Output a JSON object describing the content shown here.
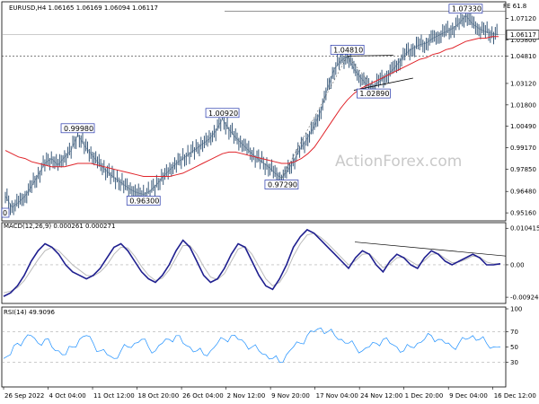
{
  "chart_data": {
    "type": "line",
    "instrument": "EURUSD,H4",
    "ohlc": [
      "1.06165",
      "1.06169",
      "1.06094",
      "1.06117"
    ],
    "watermark": "ActionForex.com",
    "fib_label": "FE 61.8",
    "x_ticks": [
      "26 Sep 2022",
      "4 Oct 04:00",
      "11 Oct 12:00",
      "18 Oct 20:00",
      "26 Oct 04:00",
      "2 Nov 12:00",
      "9 Nov 20:00",
      "17 Nov 04:00",
      "24 Nov 12:00",
      "1 Dec 20:00",
      "9 Dec 04:00",
      "16 Dec 12:00"
    ],
    "price_panel": {
      "y_ticks": [
        "1.07120",
        "1.05800",
        "1.04810",
        "1.03120",
        "1.01800",
        "1.00490",
        "0.99170",
        "0.97850",
        "0.96480",
        "0.95160"
      ],
      "ylim": [
        0.95,
        1.077
      ],
      "current_price": "1.06117",
      "price_series": [
        0.962,
        0.955,
        0.958,
        0.962,
        0.968,
        0.975,
        0.982,
        0.985,
        0.981,
        0.986,
        0.99,
        0.9998,
        0.993,
        0.988,
        0.983,
        0.979,
        0.975,
        0.972,
        0.969,
        0.966,
        0.964,
        0.963,
        0.965,
        0.969,
        0.974,
        0.978,
        0.982,
        0.985,
        0.988,
        0.991,
        0.994,
        0.997,
        1.002,
        1.0092,
        1.003,
        0.998,
        0.994,
        0.99,
        0.986,
        0.983,
        0.98,
        0.976,
        0.9729,
        0.978,
        0.985,
        0.992,
        0.998,
        1.005,
        1.015,
        1.028,
        1.04,
        1.045,
        1.0481,
        1.04,
        1.035,
        1.03,
        1.0289,
        1.033,
        1.036,
        1.04,
        1.045,
        1.05,
        1.053,
        1.055,
        1.056,
        1.059,
        1.061,
        1.063,
        1.065,
        1.068,
        1.073,
        1.068,
        1.065,
        1.063,
        1.062,
        1.0612
      ],
      "ma_series": [
        0.99,
        0.988,
        0.986,
        0.985,
        0.983,
        0.982,
        0.981,
        0.98,
        0.98,
        0.98,
        0.981,
        0.982,
        0.982,
        0.982,
        0.981,
        0.98,
        0.979,
        0.978,
        0.977,
        0.976,
        0.975,
        0.974,
        0.974,
        0.974,
        0.974,
        0.974,
        0.975,
        0.976,
        0.978,
        0.98,
        0.982,
        0.984,
        0.986,
        0.988,
        0.989,
        0.989,
        0.988,
        0.987,
        0.986,
        0.985,
        0.984,
        0.983,
        0.982,
        0.982,
        0.983,
        0.985,
        0.988,
        0.992,
        0.998,
        1.004,
        1.01,
        1.016,
        1.021,
        1.025,
        1.028,
        1.03,
        1.032,
        1.034,
        1.036,
        1.038,
        1.04,
        1.042,
        1.044,
        1.046,
        1.047,
        1.049,
        1.05,
        1.052,
        1.053,
        1.055,
        1.057,
        1.058,
        1.059,
        1.059,
        1.06,
        1.06
      ],
      "level_labels": [
        {
          "text": "0.99980",
          "i": 11,
          "v": 0.9998
        },
        {
          "text": "0.96300",
          "i": 21,
          "v": 0.963
        },
        {
          "text": "1.00920",
          "i": 33,
          "v": 1.0092
        },
        {
          "text": "0.97290",
          "i": 42,
          "v": 0.9729
        },
        {
          "text": "1.04810",
          "i": 52,
          "v": 1.0481
        },
        {
          "text": "1.02890",
          "i": 56,
          "v": 1.0289
        },
        {
          "text": "1.07330",
          "i": 70,
          "v": 1.0733
        }
      ],
      "corner_label": "0"
    },
    "macd_panel": {
      "title": "MACD(12,26,9) 0.000261 0.000271",
      "y_ticks": [
        "0.010415",
        "0.00",
        "-0.009244"
      ],
      "ylim": [
        -0.0105,
        0.0115
      ],
      "macd": [
        -0.009,
        -0.008,
        -0.006,
        -0.003,
        0.001,
        0.004,
        0.006,
        0.005,
        0.003,
        0.0,
        -0.002,
        -0.003,
        -0.004,
        -0.003,
        -0.001,
        0.002,
        0.005,
        0.006,
        0.004,
        0.001,
        -0.002,
        -0.004,
        -0.005,
        -0.003,
        0.0,
        0.004,
        0.007,
        0.005,
        0.001,
        -0.003,
        -0.005,
        -0.004,
        -0.001,
        0.003,
        0.006,
        0.005,
        0.001,
        -0.003,
        -0.006,
        -0.007,
        -0.004,
        0.0,
        0.005,
        0.008,
        0.01,
        0.009,
        0.007,
        0.005,
        0.003,
        0.001,
        -0.001,
        0.002,
        0.004,
        0.003,
        0.0,
        -0.002,
        0.001,
        0.003,
        0.002,
        0.0,
        -0.001,
        0.002,
        0.004,
        0.003,
        0.001,
        0.0,
        0.001,
        0.002,
        0.003,
        0.002,
        0.0,
        0.0,
        0.0003
      ],
      "signal": [
        -0.008,
        -0.0075,
        -0.0065,
        -0.0045,
        -0.0015,
        0.0015,
        0.004,
        0.005,
        0.004,
        0.002,
        0.0,
        -0.0015,
        -0.003,
        -0.0032,
        -0.002,
        0.0,
        0.003,
        0.005,
        0.0048,
        0.0025,
        -0.0005,
        -0.003,
        -0.0045,
        -0.0038,
        -0.0015,
        0.002,
        0.0055,
        0.0055,
        0.003,
        -0.0005,
        -0.0035,
        -0.0042,
        -0.0025,
        0.001,
        0.0045,
        0.0052,
        0.003,
        -0.0005,
        -0.004,
        -0.006,
        -0.005,
        -0.002,
        0.0025,
        0.006,
        0.0085,
        0.009,
        0.0078,
        0.006,
        0.004,
        0.002,
        0.0,
        0.0012,
        0.003,
        0.0032,
        0.0012,
        -0.0008,
        0.0002,
        0.002,
        0.0022,
        0.001,
        -0.0002,
        0.0012,
        0.003,
        0.0032,
        0.0018,
        0.0006,
        0.0008,
        0.0015,
        0.0025,
        0.0022,
        0.0008,
        0.0003,
        0.0003
      ],
      "divergence_line": [
        [
          0.0105,
          0.0045
        ],
        [
          0.0085,
          0.0025
        ]
      ]
    },
    "rsi_panel": {
      "title": "RSI(14) 49.9096",
      "y_ticks": [
        "100",
        "70",
        "50",
        "30",
        "0"
      ],
      "ylim": [
        0,
        100
      ],
      "levels": [
        70,
        30
      ],
      "rsi": [
        35,
        40,
        55,
        60,
        65,
        55,
        60,
        50,
        45,
        40,
        50,
        60,
        65,
        55,
        45,
        40,
        35,
        45,
        50,
        55,
        60,
        50,
        45,
        55,
        60,
        65,
        55,
        50,
        45,
        40,
        45,
        55,
        60,
        65,
        60,
        55,
        50,
        45,
        40,
        35,
        30,
        40,
        50,
        55,
        65,
        70,
        75,
        70,
        65,
        60,
        55,
        50,
        45,
        50,
        55,
        60,
        55,
        50,
        45,
        50,
        55,
        60,
        65,
        60,
        55,
        50,
        55,
        60,
        65,
        60,
        55,
        50,
        50
      ],
      "color": "#1e90ff"
    },
    "colors": {
      "price": "#3a5a7a",
      "ma": "#e0242a",
      "macd": "#1f1f8f",
      "signal": "#bbbbbb",
      "rsi": "#1e90ff",
      "grid": "#9a9a9a"
    }
  }
}
